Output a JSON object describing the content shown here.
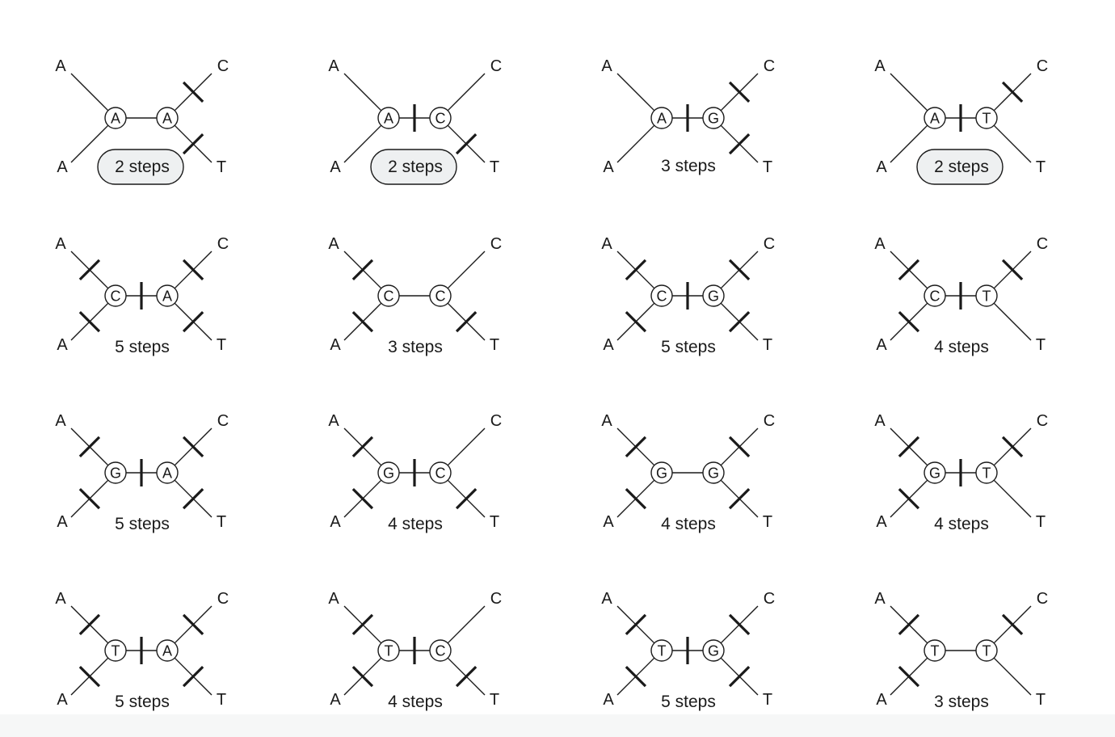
{
  "tips": [
    "A",
    "A",
    "C",
    "T"
  ],
  "colors": {
    "line": "#1a1a1a",
    "highlight_fill": "#eef0f1",
    "background": "#ffffff",
    "band": "#f6f7f7"
  },
  "trees": [
    {
      "left": "A",
      "right": "A",
      "steps": "2 steps",
      "highlight": true,
      "ticks": {
        "ul": false,
        "ll": false,
        "ur": true,
        "lr": true,
        "mid": false
      }
    },
    {
      "left": "A",
      "right": "C",
      "steps": "2 steps",
      "highlight": true,
      "ticks": {
        "ul": false,
        "ll": false,
        "ur": false,
        "lr": true,
        "mid": true
      }
    },
    {
      "left": "A",
      "right": "G",
      "steps": "3 steps",
      "highlight": false,
      "ticks": {
        "ul": false,
        "ll": false,
        "ur": true,
        "lr": true,
        "mid": true
      }
    },
    {
      "left": "A",
      "right": "T",
      "steps": "2 steps",
      "highlight": true,
      "ticks": {
        "ul": false,
        "ll": false,
        "ur": true,
        "lr": false,
        "mid": true
      }
    },
    {
      "left": "C",
      "right": "A",
      "steps": "5 steps",
      "highlight": false,
      "ticks": {
        "ul": true,
        "ll": true,
        "ur": true,
        "lr": true,
        "mid": true
      }
    },
    {
      "left": "C",
      "right": "C",
      "steps": "3 steps",
      "highlight": false,
      "ticks": {
        "ul": true,
        "ll": true,
        "ur": false,
        "lr": true,
        "mid": false
      }
    },
    {
      "left": "C",
      "right": "G",
      "steps": "5 steps",
      "highlight": false,
      "ticks": {
        "ul": true,
        "ll": true,
        "ur": true,
        "lr": true,
        "mid": true
      }
    },
    {
      "left": "C",
      "right": "T",
      "steps": "4 steps",
      "highlight": false,
      "ticks": {
        "ul": true,
        "ll": true,
        "ur": true,
        "lr": false,
        "mid": true
      }
    },
    {
      "left": "G",
      "right": "A",
      "steps": "5 steps",
      "highlight": false,
      "ticks": {
        "ul": true,
        "ll": true,
        "ur": true,
        "lr": true,
        "mid": true
      }
    },
    {
      "left": "G",
      "right": "C",
      "steps": "4 steps",
      "highlight": false,
      "ticks": {
        "ul": true,
        "ll": true,
        "ur": false,
        "lr": true,
        "mid": true
      }
    },
    {
      "left": "G",
      "right": "G",
      "steps": "4 steps",
      "highlight": false,
      "ticks": {
        "ul": true,
        "ll": true,
        "ur": true,
        "lr": true,
        "mid": false
      }
    },
    {
      "left": "G",
      "right": "T",
      "steps": "4 steps",
      "highlight": false,
      "ticks": {
        "ul": true,
        "ll": true,
        "ur": true,
        "lr": false,
        "mid": true
      }
    },
    {
      "left": "T",
      "right": "A",
      "steps": "5 steps",
      "highlight": false,
      "ticks": {
        "ul": true,
        "ll": true,
        "ur": true,
        "lr": true,
        "mid": true
      }
    },
    {
      "left": "T",
      "right": "C",
      "steps": "4 steps",
      "highlight": false,
      "ticks": {
        "ul": true,
        "ll": true,
        "ur": false,
        "lr": true,
        "mid": true
      }
    },
    {
      "left": "T",
      "right": "G",
      "steps": "5 steps",
      "highlight": false,
      "ticks": {
        "ul": true,
        "ll": true,
        "ur": true,
        "lr": true,
        "mid": true
      }
    },
    {
      "left": "T",
      "right": "T",
      "steps": "3 steps",
      "highlight": false,
      "ticks": {
        "ul": true,
        "ll": true,
        "ur": true,
        "lr": false,
        "mid": false
      }
    }
  ]
}
